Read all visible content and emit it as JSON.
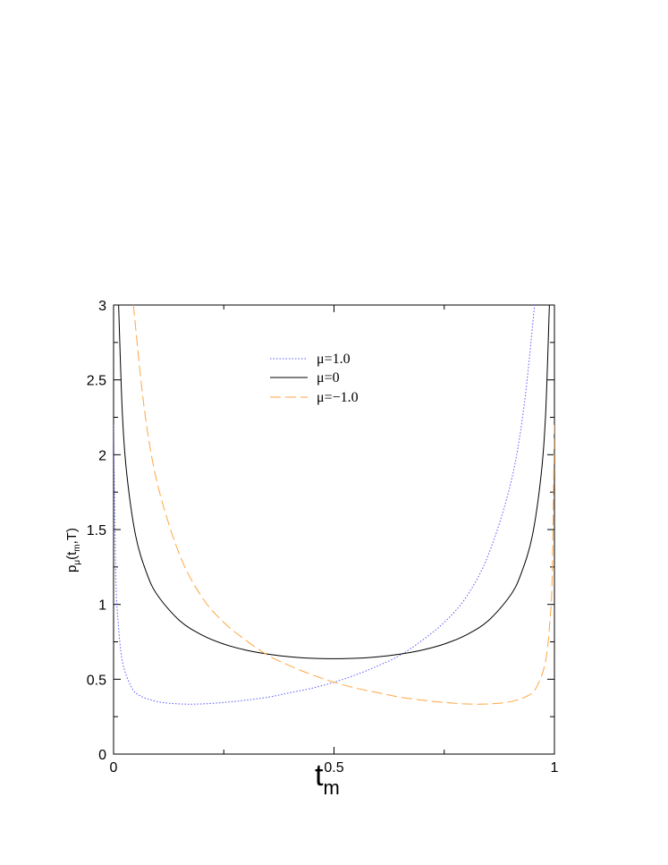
{
  "chart_data": {
    "type": "line",
    "title": "",
    "xlabel": {
      "main": "t",
      "sub": "m"
    },
    "ylabel": {
      "p": "p",
      "mu": "μ",
      "args_open": "(t",
      "m": "m",
      "args_close": ",T)"
    },
    "xlim": [
      0,
      1
    ],
    "ylim": [
      0,
      3
    ],
    "x_ticks": [
      "0",
      "0.5",
      "1"
    ],
    "x_tick_values": [
      0,
      0.5,
      1
    ],
    "y_ticks": [
      "0",
      "0.5",
      "1",
      "1.5",
      "2",
      "2.5",
      "3"
    ],
    "y_tick_values": [
      0,
      0.5,
      1,
      1.5,
      2,
      2.5,
      3
    ],
    "grid": false,
    "legend_position": "top-center",
    "series": [
      {
        "name": "μ=1.0",
        "color": "#5a5aff",
        "style": "dotted",
        "x": [
          0,
          0.005,
          0.01,
          0.02,
          0.04,
          0.06,
          0.1,
          0.15,
          0.2,
          0.25,
          0.3,
          0.35,
          0.4,
          0.45,
          0.5,
          0.55,
          0.6,
          0.65,
          0.7,
          0.75,
          0.8,
          0.85,
          0.9,
          0.93,
          0.955
        ],
        "y": [
          2.2,
          1.2,
          0.9,
          0.62,
          0.45,
          0.39,
          0.35,
          0.335,
          0.335,
          0.345,
          0.36,
          0.38,
          0.41,
          0.44,
          0.48,
          0.53,
          0.59,
          0.66,
          0.76,
          0.88,
          1.05,
          1.33,
          1.8,
          2.3,
          3.0
        ]
      },
      {
        "name": "μ=0",
        "color": "#000000",
        "style": "solid",
        "x": [
          0.0114,
          0.02,
          0.03,
          0.05,
          0.075,
          0.1,
          0.15,
          0.2,
          0.25,
          0.3,
          0.35,
          0.4,
          0.45,
          0.5,
          0.55,
          0.6,
          0.65,
          0.7,
          0.75,
          0.8,
          0.85,
          0.9,
          0.925,
          0.95,
          0.97,
          0.98,
          0.9886
        ],
        "y": [
          3.0,
          2.27,
          1.87,
          1.46,
          1.21,
          1.06,
          0.891,
          0.796,
          0.735,
          0.695,
          0.668,
          0.65,
          0.64,
          0.637,
          0.64,
          0.65,
          0.668,
          0.695,
          0.735,
          0.796,
          0.891,
          1.06,
          1.21,
          1.46,
          1.87,
          2.27,
          3.0
        ]
      },
      {
        "name": "μ=−1.0",
        "color": "#ffa640",
        "style": "dashed",
        "x": [
          0.045,
          0.07,
          0.1,
          0.15,
          0.2,
          0.25,
          0.3,
          0.35,
          0.4,
          0.45,
          0.5,
          0.55,
          0.6,
          0.65,
          0.7,
          0.75,
          0.8,
          0.85,
          0.9,
          0.94,
          0.96,
          0.98,
          0.99,
          0.995,
          1.0
        ],
        "y": [
          3.0,
          2.3,
          1.8,
          1.33,
          1.05,
          0.88,
          0.76,
          0.66,
          0.59,
          0.53,
          0.48,
          0.44,
          0.41,
          0.38,
          0.36,
          0.345,
          0.335,
          0.335,
          0.35,
          0.39,
          0.45,
          0.62,
          0.9,
          1.2,
          2.2
        ]
      }
    ]
  }
}
